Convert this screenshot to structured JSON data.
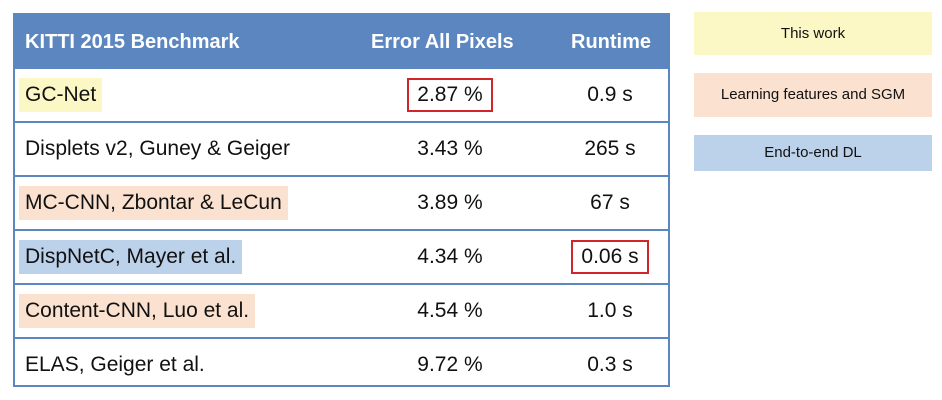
{
  "table": {
    "headers": {
      "benchmark": "KITTI 2015 Benchmark",
      "error": "Error All Pixels",
      "runtime": "Runtime"
    },
    "rows": [
      {
        "method": "GC-Net",
        "error": "2.87 %",
        "runtime": "0.9 s",
        "highlight": "yellow",
        "boxed": "error"
      },
      {
        "method": "Displets v2, Guney & Geiger",
        "error": "3.43 %",
        "runtime": "265 s",
        "highlight": "none",
        "boxed": ""
      },
      {
        "method": "MC-CNN, Zbontar & LeCun",
        "error": "3.89 %",
        "runtime": "67 s",
        "highlight": "peach",
        "boxed": ""
      },
      {
        "method": "DispNetC, Mayer et al.",
        "error": "4.34 %",
        "runtime": "0.06 s",
        "highlight": "blue",
        "boxed": "runtime"
      },
      {
        "method": "Content-CNN, Luo et al.",
        "error": "4.54 %",
        "runtime": "1.0 s",
        "highlight": "peach",
        "boxed": ""
      },
      {
        "method": "ELAS, Geiger et al.",
        "error": "9.72 %",
        "runtime": "0.3 s",
        "highlight": "none",
        "boxed": ""
      }
    ]
  },
  "legend": {
    "this_work": "This work",
    "learning_features": "Learning features and SGM",
    "end_to_end": "End-to-end DL"
  },
  "colors": {
    "header_blue": "#5b86bf",
    "highlight_yellow": "#fbf8c6",
    "highlight_peach": "#fbe1cf",
    "highlight_blue": "#bcd1ea",
    "box_red": "#d0252a"
  }
}
